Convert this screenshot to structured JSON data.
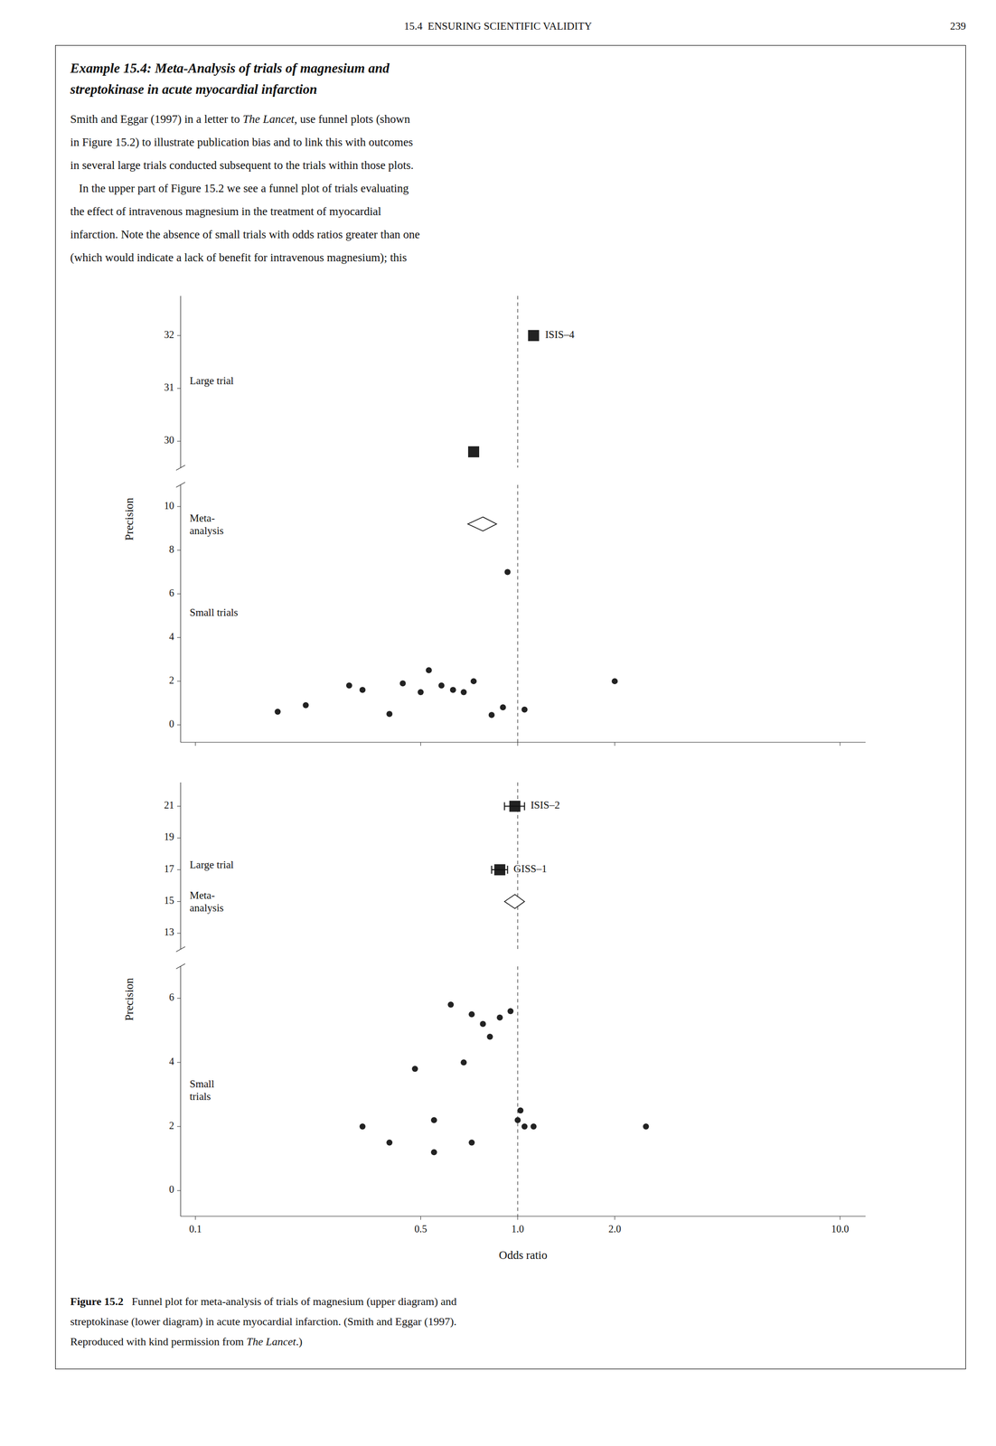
{
  "page": {
    "header": "15.4  ENSURING SCIENTIFIC VALIDITY",
    "page_number": "239",
    "box_title": [
      "Example 15.4: Meta-Analysis of trials of magnesium and",
      "streptokinase in acute myocardial infarction"
    ],
    "body": [
      [
        "Smith and Eggar (1997) in a letter to ",
        "The Lancet",
        ", use funnel plots (shown"
      ],
      [
        "in Figure 15.2) to illustrate publication bias and to link this with outcomes"
      ],
      [
        "in several large trials conducted subsequent to the trials within those plots."
      ],
      [
        "   In the upper part of Figure 15.2 we see a funnel plot of trials evaluating"
      ],
      [
        "the effect of intravenous magnesium in the treatment of myocardial"
      ],
      [
        "infarction. Note the absence of small trials with odds ratios greater than one"
      ],
      [
        "(which would indicate a lack of benefit for intravenous magnesium); this"
      ]
    ],
    "caption": [
      [
        "Figure 15.2",
        "   Funnel plot for meta-analysis of trials of magnesium (upper diagram) and"
      ],
      [
        "streptokinase (lower diagram) in acute myocardial infarction. (Smith and Eggar (1997)."
      ],
      [
        "Reproduced with kind permission from ",
        "The Lancet",
        ".)"
      ]
    ]
  },
  "chart_data": [
    {
      "type": "scatter",
      "log": "x",
      "grid": false,
      "tick_labels": "y",
      "ylabel": "Precision",
      "xlim": [
        0.09,
        12
      ],
      "xticks": [
        0.1,
        0.5,
        1.0,
        2.0,
        10.0
      ],
      "ylim": [
        -0.8,
        32.75
      ],
      "yticks": [
        0,
        2,
        4,
        6,
        8,
        10,
        30,
        31,
        32
      ],
      "reference_x": 1.0,
      "annotations": [
        "Large trial",
        "Meta-\nanalysis",
        "Small trials"
      ],
      "series": [
        {
          "marker": "circle",
          "x": [
            0.18,
            0.22,
            0.3,
            0.33,
            0.4,
            0.44,
            0.5,
            0.53,
            0.58,
            0.63,
            0.68,
            0.73,
            0.83,
            0.9,
            1.05,
            2.0
          ],
          "values": [
            0.6,
            0.9,
            1.8,
            1.6,
            0.5,
            1.9,
            1.5,
            2.5,
            1.8,
            1.6,
            1.5,
            2.0,
            0.45,
            0.8,
            0.7,
            2.0
          ]
        },
        {
          "marker": "circle",
          "x": [
            0.93
          ],
          "values": [
            7.0
          ]
        },
        {
          "marker": "square",
          "x": [
            0.73
          ],
          "values": [
            29.8
          ]
        },
        {
          "name": "ISIS–4",
          "marker": "square",
          "x": [
            1.12
          ],
          "values": [
            32.0
          ]
        },
        {
          "marker": "diamond",
          "x": [
            0.78
          ],
          "values": [
            9.2
          ],
          "xerr": [
            0.08
          ]
        }
      ]
    },
    {
      "type": "scatter",
      "log": "x",
      "grid": false,
      "ylabel": "Precision",
      "xlabel": "Odds ratio",
      "xlim": [
        0.09,
        12
      ],
      "xticks": [
        0.1,
        0.5,
        {
          "value": 1.0,
          "label": "1.0"
        },
        {
          "value": 2.0,
          "label": "2.0"
        },
        {
          "value": 10.0,
          "label": "10.0"
        }
      ],
      "ylim": [
        -0.8,
        22.5
      ],
      "yticks": [
        0,
        2,
        4,
        6,
        13,
        15,
        17,
        19,
        21
      ],
      "reference_x": 1.0,
      "annotations": [
        "Large trial",
        "Meta-\nanalysis",
        "Small\ntrials"
      ],
      "series": [
        {
          "marker": "circle",
          "x": [
            0.33,
            0.4,
            0.48,
            0.55,
            0.62,
            0.68,
            0.72,
            0.78,
            0.82,
            0.88,
            0.95,
            1.0,
            1.02,
            1.05,
            1.12,
            2.5,
            0.55,
            0.72
          ],
          "values": [
            2.0,
            1.5,
            3.8,
            2.2,
            5.8,
            4.0,
            5.5,
            5.2,
            4.8,
            5.4,
            5.6,
            2.2,
            2.5,
            2.0,
            2.0,
            2.0,
            1.2,
            1.5
          ]
        },
        {
          "name": "ISIS–2",
          "marker": "square",
          "x": [
            0.98
          ],
          "values": [
            21.0
          ],
          "xerr": [
            0.07
          ]
        },
        {
          "name": "GISS–1",
          "marker": "square",
          "x": [
            0.88
          ],
          "values": [
            17.0
          ],
          "xerr": [
            0.05
          ]
        },
        {
          "marker": "diamond",
          "x": [
            0.98
          ],
          "values": [
            15.0
          ],
          "xerr": [
            0.07
          ]
        }
      ]
    }
  ]
}
